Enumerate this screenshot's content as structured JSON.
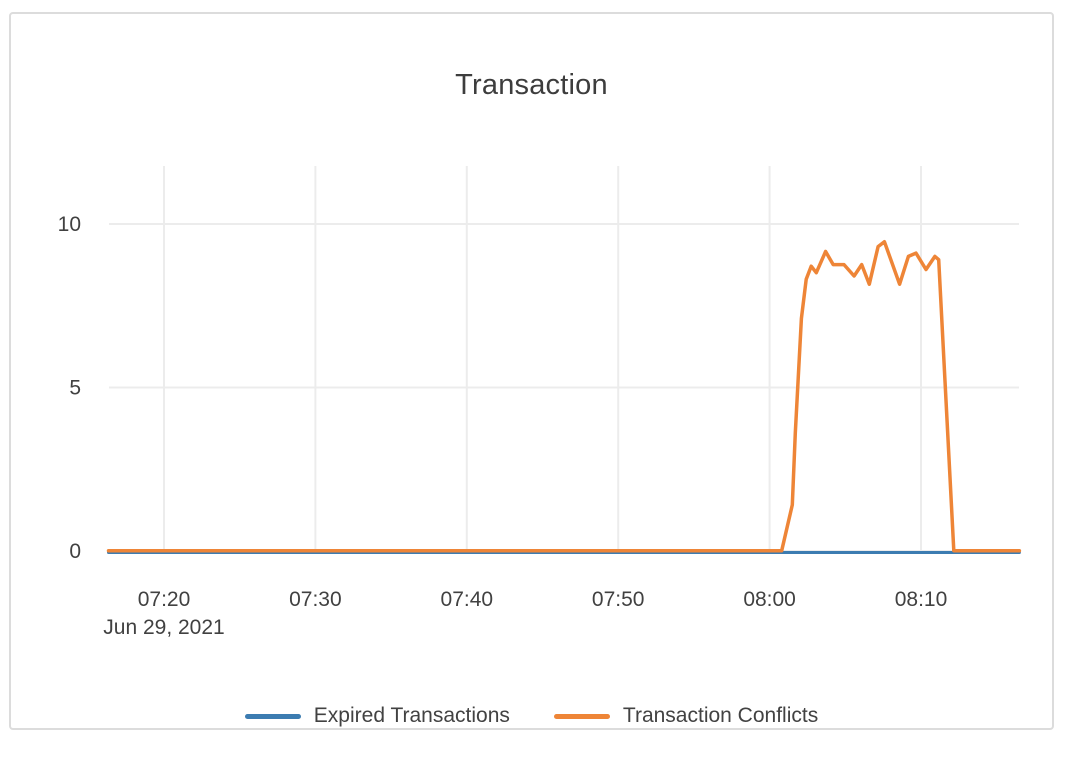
{
  "card": {
    "background": "#ffffff",
    "border_color": "#dcdcdc"
  },
  "chart_data": {
    "type": "line",
    "title": "Transaction",
    "date_label": "Jun 29, 2021",
    "x_tick_labels": [
      "07:20",
      "07:30",
      "07:40",
      "07:50",
      "08:00",
      "08:10"
    ],
    "x_range": [
      "07:16:20",
      "08:16:30"
    ],
    "y_ticks": [
      0,
      5,
      10
    ],
    "ylim": [
      0,
      11.8
    ],
    "grid": true,
    "legend_position": "bottom",
    "axis_text_color": "#414141",
    "grid_color": "#ececec",
    "series": [
      {
        "name": "Expired Transactions",
        "color": "#3c7cb1",
        "points": [
          [
            "07:16:20",
            0
          ],
          [
            "07:30:00",
            0
          ],
          [
            "07:45:00",
            0
          ],
          [
            "08:00:00",
            0
          ],
          [
            "08:16:30",
            0
          ]
        ]
      },
      {
        "name": "Transaction Conflicts",
        "color": "#ee8537",
        "points": [
          [
            "07:16:20",
            0
          ],
          [
            "07:20:00",
            0
          ],
          [
            "07:30:00",
            0
          ],
          [
            "07:40:00",
            0
          ],
          [
            "07:50:00",
            0
          ],
          [
            "08:00:00",
            0
          ],
          [
            "08:00:48",
            0
          ],
          [
            "08:01:30",
            1.4
          ],
          [
            "08:01:42",
            3.6
          ],
          [
            "08:02:06",
            7.1
          ],
          [
            "08:02:25",
            8.3
          ],
          [
            "08:02:45",
            8.7
          ],
          [
            "08:03:05",
            8.5
          ],
          [
            "08:03:42",
            9.15
          ],
          [
            "08:04:12",
            8.75
          ],
          [
            "08:04:55",
            8.75
          ],
          [
            "08:05:35",
            8.4
          ],
          [
            "08:06:05",
            8.75
          ],
          [
            "08:06:35",
            8.15
          ],
          [
            "08:07:10",
            9.3
          ],
          [
            "08:07:35",
            9.45
          ],
          [
            "08:08:35",
            8.15
          ],
          [
            "08:09:10",
            9.0
          ],
          [
            "08:09:40",
            9.1
          ],
          [
            "08:10:20",
            8.6
          ],
          [
            "08:10:55",
            9.0
          ],
          [
            "08:11:10",
            8.9
          ],
          [
            "08:12:10",
            0
          ],
          [
            "08:16:30",
            0
          ]
        ]
      }
    ]
  }
}
